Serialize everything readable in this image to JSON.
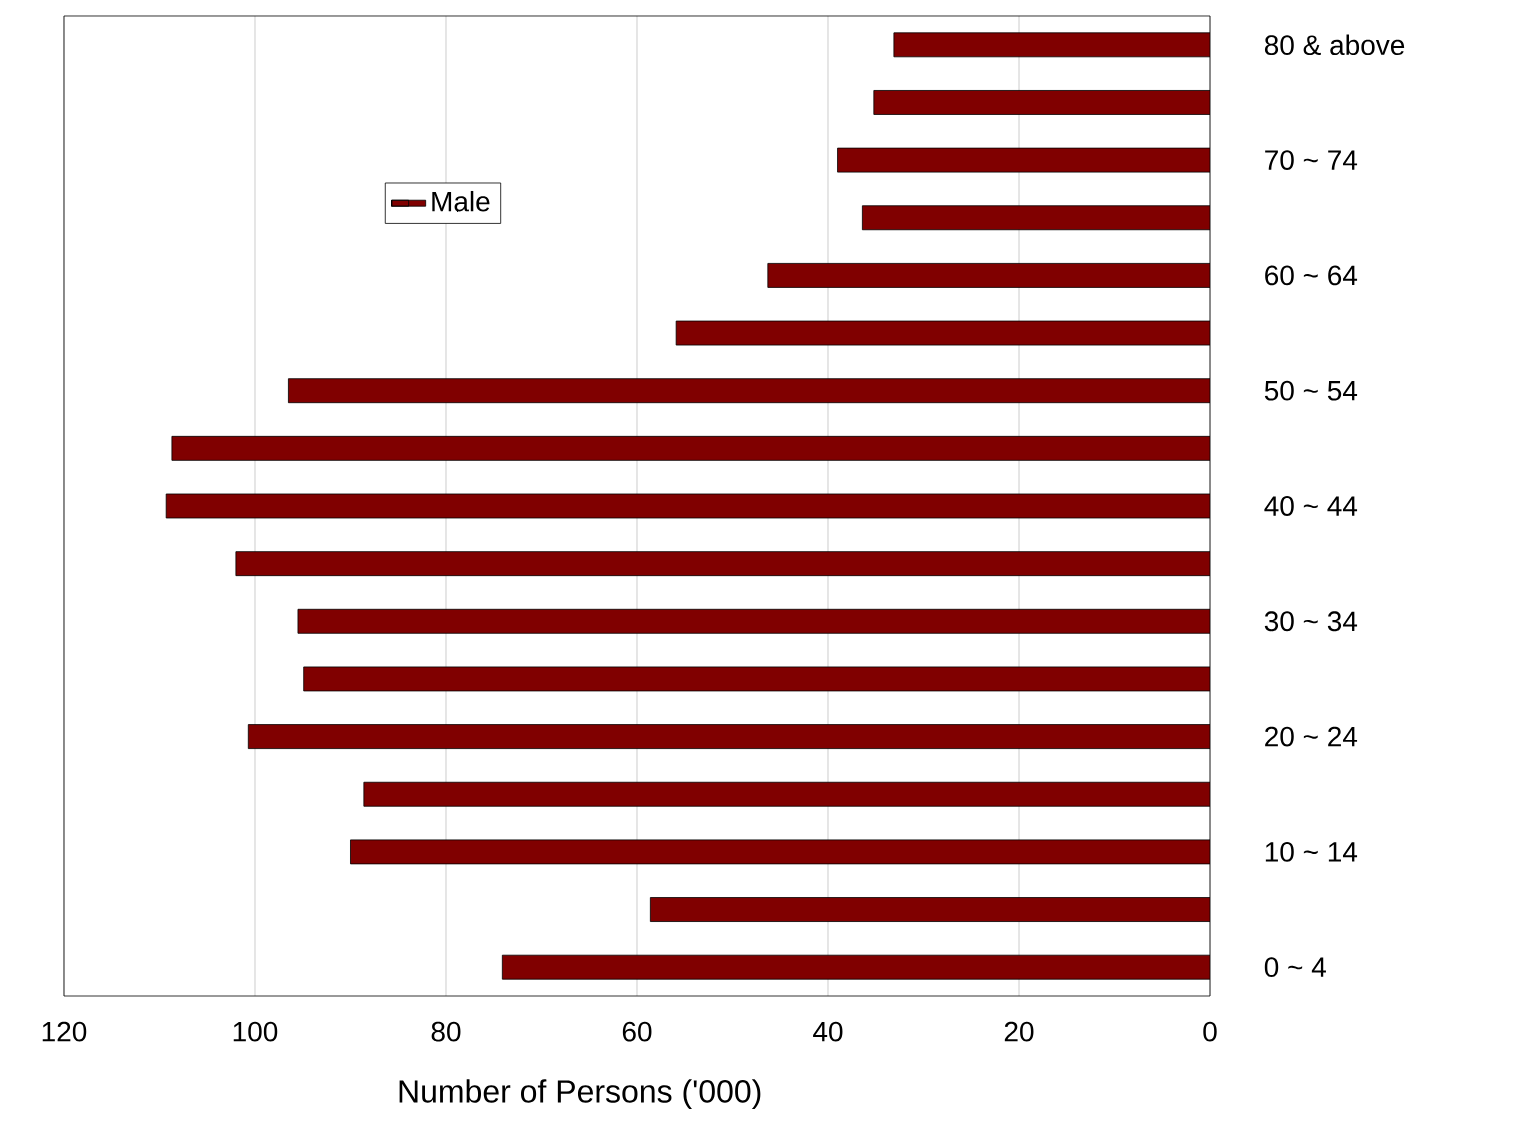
{
  "chart_data": {
    "type": "bar",
    "orientation": "horizontal",
    "xlabel": "Number of Persons ('000)",
    "categories": [
      "80 & above",
      null,
      "70 ~ 74",
      null,
      "60 ~ 64",
      null,
      "50 ~ 54",
      null,
      "40 ~ 44",
      null,
      "30 ~ 34",
      null,
      "20 ~ 24",
      null,
      "10 ~ 14",
      null,
      "0 ~ 4"
    ],
    "series": [
      {
        "name": "Male",
        "color": "#800000",
        "values": [
          33.1,
          35.2,
          39.0,
          36.4,
          46.3,
          55.9,
          96.5,
          108.7,
          109.3,
          102.0,
          95.5,
          94.9,
          100.7,
          88.6,
          90.0,
          58.6,
          74.1
        ]
      }
    ],
    "xlim": [
      120,
      0
    ],
    "xticks": [
      120,
      100,
      80,
      60,
      40,
      20,
      0
    ],
    "grid": "x",
    "legend": "top left"
  }
}
